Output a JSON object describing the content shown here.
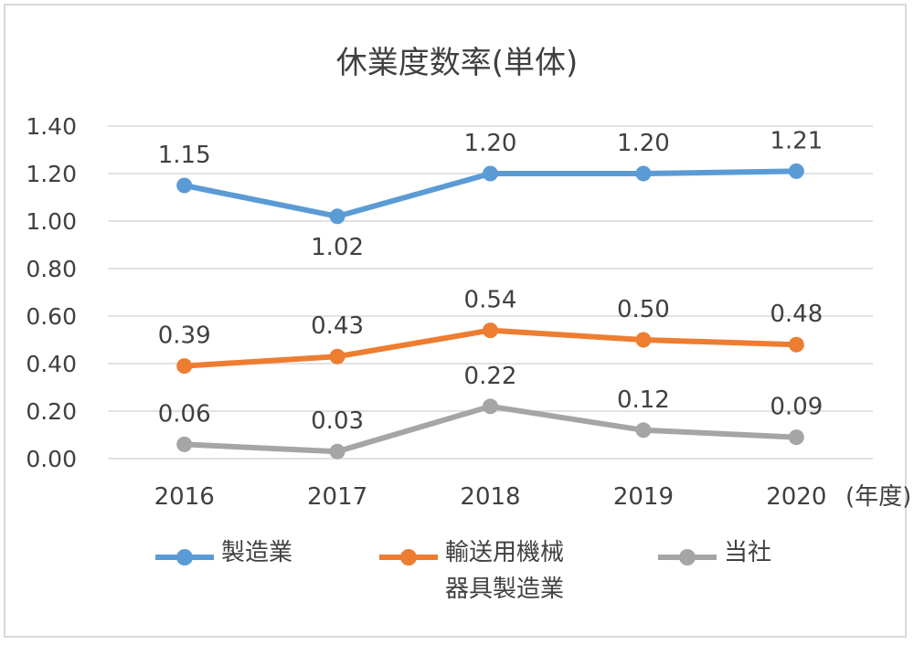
{
  "chart_data": {
    "type": "line",
    "title": "休業度数率(単体)",
    "categories": [
      "2016",
      "2017",
      "2018",
      "2019",
      "2020"
    ],
    "x_unit": "(年度)",
    "ylim": [
      0,
      1.4
    ],
    "yticks": [
      "0.00",
      "0.20",
      "0.40",
      "0.60",
      "0.80",
      "1.00",
      "1.20",
      "1.40"
    ],
    "grid": true,
    "legend_position": "bottom",
    "series": [
      {
        "name": "製造業",
        "color": "#5b9bd5",
        "values": [
          1.15,
          1.02,
          1.2,
          1.2,
          1.21
        ],
        "labels": [
          "1.15",
          "1.02",
          "1.20",
          "1.20",
          "1.21"
        ],
        "label_pos": [
          "above",
          "below",
          "above",
          "above",
          "above"
        ]
      },
      {
        "name": "輸送用機械器具製造業",
        "color": "#ed7d31",
        "values": [
          0.39,
          0.43,
          0.54,
          0.5,
          0.48
        ],
        "labels": [
          "0.39",
          "0.43",
          "0.54",
          "0.50",
          "0.48"
        ],
        "label_pos": [
          "above",
          "above",
          "above",
          "above",
          "above"
        ]
      },
      {
        "name": "当社",
        "color": "#a5a5a5",
        "values": [
          0.06,
          0.03,
          0.22,
          0.12,
          0.09
        ],
        "labels": [
          "0.06",
          "0.03",
          "0.22",
          "0.12",
          "0.09"
        ],
        "label_pos": [
          "above",
          "above",
          "above",
          "above",
          "above"
        ]
      }
    ]
  },
  "legend": {
    "items": [
      {
        "line1": "製造業",
        "line2": ""
      },
      {
        "line1": "輸送用機械",
        "line2": "器具製造業"
      },
      {
        "line1": "当社",
        "line2": ""
      }
    ]
  }
}
